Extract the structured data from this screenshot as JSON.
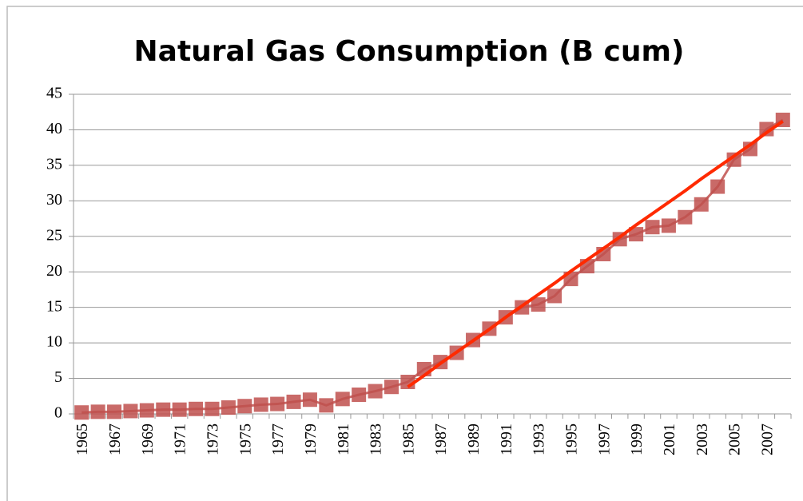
{
  "chart_data": {
    "type": "line",
    "title": "Natural Gas Consumption (B cum)",
    "categories": [
      "1965",
      null,
      "1967",
      null,
      "1969",
      null,
      "1971",
      null,
      "1973",
      null,
      "1975",
      null,
      "1977",
      null,
      "1979",
      null,
      "1981",
      null,
      "1983",
      null,
      "1985",
      null,
      "1987",
      null,
      "1989",
      null,
      "1991",
      null,
      "1993",
      null,
      "1995",
      null,
      "1997",
      null,
      "1999",
      null,
      "2001",
      null,
      "2003",
      null,
      "2005",
      null,
      "2007",
      null
    ],
    "series": [
      {
        "color": "#c0504d",
        "marker": "square",
        "values": [
          0.2,
          0.3,
          0.3,
          0.4,
          0.5,
          0.6,
          0.6,
          0.7,
          0.7,
          0.9,
          1.1,
          1.3,
          1.4,
          1.7,
          2.0,
          1.2,
          2.1,
          2.7,
          3.2,
          3.8,
          4.5,
          6.3,
          7.3,
          8.6,
          10.4,
          12.0,
          13.6,
          15.0,
          15.4,
          16.6,
          19.0,
          20.8,
          22.5,
          24.6,
          25.3,
          26.3,
          26.5,
          27.7,
          29.5,
          32.0,
          35.8,
          37.3,
          40.1,
          41.4
        ]
      },
      {
        "color": "#ff2a00",
        "marker": "none",
        "values": [
          null,
          null,
          null,
          null,
          null,
          null,
          null,
          null,
          null,
          null,
          null,
          null,
          null,
          null,
          null,
          null,
          null,
          null,
          null,
          null,
          3.8,
          5.4,
          7.1,
          8.7,
          10.3,
          11.9,
          13.6,
          15.2,
          16.8,
          18.4,
          20.1,
          21.7,
          23.3,
          24.9,
          26.6,
          28.2,
          29.8,
          31.4,
          33.1,
          34.7,
          36.3,
          37.9,
          39.6,
          41.2
        ]
      }
    ],
    "ylim": [
      0,
      45
    ],
    "yticks": [
      0,
      5,
      10,
      15,
      20,
      25,
      30,
      35,
      40,
      45
    ],
    "grid": true
  }
}
